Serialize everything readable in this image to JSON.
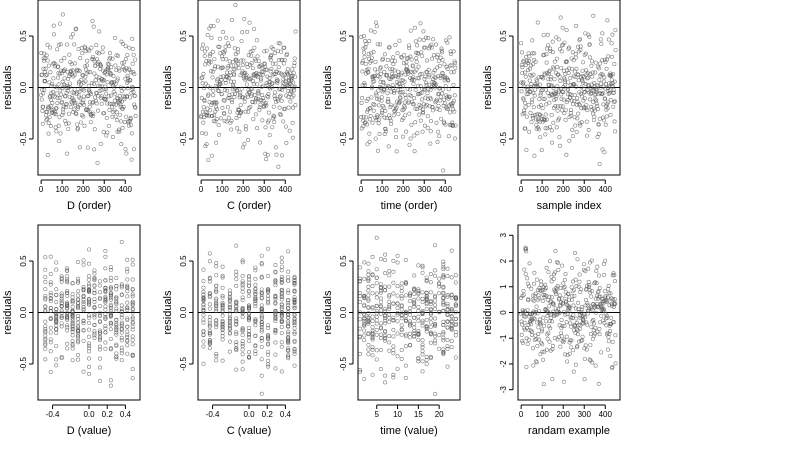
{
  "chart_data": [
    {
      "type": "scatter",
      "xlabel": "D (order)",
      "ylabel": "residuals",
      "xlim": [
        -15,
        470
      ],
      "ylim": [
        -0.85,
        0.85
      ],
      "xticks": [
        0,
        100,
        200,
        300,
        400
      ],
      "yticks": [
        -0.5,
        0.0,
        0.5
      ],
      "xtick_labels": [
        "0",
        "100",
        "200",
        "300",
        "400"
      ],
      "ytick_labels": [
        "-0.5",
        "0.0",
        "0.5"
      ],
      "reference_line": 0,
      "gen": {
        "kind": "index",
        "n": 450,
        "sd": 0.26,
        "seed": 11
      }
    },
    {
      "type": "scatter",
      "xlabel": "C (order)",
      "ylabel": "residuals",
      "xlim": [
        -15,
        470
      ],
      "ylim": [
        -0.85,
        0.85
      ],
      "xticks": [
        0,
        100,
        200,
        300,
        400
      ],
      "yticks": [
        -0.5,
        0.0,
        0.5
      ],
      "xtick_labels": [
        "0",
        "100",
        "200",
        "300",
        "400"
      ],
      "ytick_labels": [
        "-0.5",
        "0.0",
        "0.5"
      ],
      "reference_line": 0,
      "gen": {
        "kind": "index",
        "n": 450,
        "sd": 0.26,
        "seed": 23
      }
    },
    {
      "type": "scatter",
      "xlabel": "time (order)",
      "ylabel": "residuals",
      "xlim": [
        -15,
        470
      ],
      "ylim": [
        -0.85,
        0.85
      ],
      "xticks": [
        0,
        100,
        200,
        300,
        400
      ],
      "yticks": [
        -0.5,
        0.0,
        0.5
      ],
      "xtick_labels": [
        "0",
        "100",
        "200",
        "300",
        "400"
      ],
      "ytick_labels": [
        "-0.5",
        "0.0",
        "0.5"
      ],
      "reference_line": 0,
      "gen": {
        "kind": "index",
        "n": 450,
        "sd": 0.26,
        "seed": 37
      }
    },
    {
      "type": "scatter",
      "xlabel": "sample index",
      "ylabel": "residuals",
      "xlim": [
        -15,
        470
      ],
      "ylim": [
        -0.85,
        0.85
      ],
      "xticks": [
        0,
        100,
        200,
        300,
        400
      ],
      "yticks": [
        -0.5,
        0.0,
        0.5
      ],
      "xtick_labels": [
        "0",
        "100",
        "200",
        "300",
        "400"
      ],
      "ytick_labels": [
        "-0.5",
        "0.0",
        "0.5"
      ],
      "reference_line": 0,
      "gen": {
        "kind": "index",
        "n": 450,
        "sd": 0.26,
        "seed": 41
      }
    },
    {
      "type": "scatter",
      "xlabel": "D (value)",
      "ylabel": "residuals",
      "xlim": [
        -0.56,
        0.56
      ],
      "ylim": [
        -0.85,
        0.85
      ],
      "xticks": [
        -0.4,
        0.0,
        0.2,
        0.4
      ],
      "yticks": [
        -0.5,
        0.0,
        0.5
      ],
      "xtick_labels": [
        "-0.4",
        "0.0",
        "0.2",
        "0.4"
      ],
      "ytick_labels": [
        "-0.5",
        "0.0",
        "0.5"
      ],
      "reference_line": 0,
      "gen": {
        "kind": "grouped",
        "n": 450,
        "sd": 0.25,
        "seed": 53,
        "levels": [
          -0.48,
          -0.42,
          -0.36,
          -0.3,
          -0.24,
          -0.18,
          -0.12,
          -0.06,
          0.0,
          0.06,
          0.12,
          0.18,
          0.24,
          0.3,
          0.36,
          0.42,
          0.48
        ]
      }
    },
    {
      "type": "scatter",
      "xlabel": "C (value)",
      "ylabel": "residuals",
      "xlim": [
        -0.56,
        0.56
      ],
      "ylim": [
        -0.85,
        0.85
      ],
      "xticks": [
        -0.4,
        0.0,
        0.2,
        0.4
      ],
      "yticks": [
        -0.5,
        0.0,
        0.5
      ],
      "xtick_labels": [
        "-0.4",
        "0.0",
        "0.2",
        "0.4"
      ],
      "ytick_labels": [
        "-0.5",
        "0.0",
        "0.5"
      ],
      "reference_line": 0,
      "gen": {
        "kind": "grouped",
        "n": 450,
        "sd": 0.25,
        "seed": 61,
        "levels": [
          -0.5,
          -0.43,
          -0.36,
          -0.29,
          -0.21,
          -0.14,
          -0.07,
          0.0,
          0.07,
          0.14,
          0.21,
          0.29,
          0.36,
          0.43,
          0.5
        ]
      }
    },
    {
      "type": "scatter",
      "xlabel": "time (value)",
      "ylabel": "residuals",
      "xlim": [
        0.5,
        25
      ],
      "ylim": [
        -0.85,
        0.85
      ],
      "xticks": [
        5,
        10,
        15,
        20
      ],
      "yticks": [
        -0.5,
        0.0,
        0.5
      ],
      "xtick_labels": [
        "5",
        "10",
        "15",
        "20"
      ],
      "ytick_labels": [
        "-0.5",
        "0.0",
        "0.5"
      ],
      "reference_line": 0,
      "gen": {
        "kind": "grouped",
        "n": 450,
        "sd": 0.25,
        "seed": 71,
        "levels": [
          1,
          2,
          3,
          4,
          5,
          6,
          7,
          8,
          9,
          10,
          11,
          12,
          13,
          14,
          15,
          16,
          17,
          18,
          19,
          20,
          21,
          22,
          23,
          24
        ]
      }
    },
    {
      "type": "scatter",
      "xlabel": "randam example",
      "ylabel": "residuals",
      "xlim": [
        -15,
        470
      ],
      "ylim": [
        -3.4,
        3.4
      ],
      "xticks": [
        0,
        100,
        200,
        300,
        400
      ],
      "yticks": [
        -3,
        -2,
        -1,
        0,
        1,
        2,
        3
      ],
      "xtick_labels": [
        "0",
        "100",
        "200",
        "300",
        "400"
      ],
      "ytick_labels": [
        "-3",
        "-2",
        "-1",
        "0",
        "1",
        "2",
        "3"
      ],
      "reference_line": 0,
      "gen": {
        "kind": "index",
        "n": 450,
        "sd": 1.0,
        "seed": 83
      }
    }
  ]
}
